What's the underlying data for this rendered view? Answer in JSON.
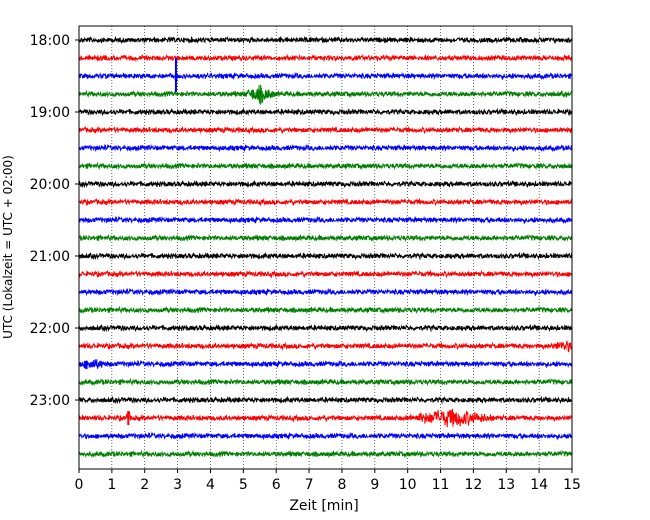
{
  "chart_data": {
    "type": "line",
    "chart_kind": "helicorder (seismogram drum plot)",
    "xlabel": "Zeit  [min]",
    "ylabel": "UTC (Lokalzeit = UTC + 02:00)",
    "xlim": [
      0,
      15
    ],
    "x_ticks": [
      "0",
      "1",
      "2",
      "3",
      "4",
      "5",
      "6",
      "7",
      "8",
      "9",
      "10",
      "11",
      "12",
      "13",
      "14",
      "15"
    ],
    "y_tick_labels": [
      "18:00",
      "19:00",
      "20:00",
      "21:00",
      "22:00",
      "23:00"
    ],
    "grid": "vertical dotted lines at every minute",
    "trace_colors": [
      "#000000",
      "#ff0000",
      "#0000ff",
      "#008000"
    ],
    "line_interval_minutes": 15,
    "traces": [
      {
        "start": "18:00",
        "color": "#000000"
      },
      {
        "start": "18:15",
        "color": "#ff0000"
      },
      {
        "start": "18:30",
        "color": "#0000ff"
      },
      {
        "start": "18:45",
        "color": "#008000"
      },
      {
        "start": "19:00",
        "color": "#000000"
      },
      {
        "start": "19:15",
        "color": "#ff0000"
      },
      {
        "start": "19:30",
        "color": "#0000ff"
      },
      {
        "start": "19:45",
        "color": "#008000"
      },
      {
        "start": "20:00",
        "color": "#000000"
      },
      {
        "start": "20:15",
        "color": "#ff0000"
      },
      {
        "start": "20:30",
        "color": "#0000ff"
      },
      {
        "start": "20:45",
        "color": "#008000"
      },
      {
        "start": "21:00",
        "color": "#000000"
      },
      {
        "start": "21:15",
        "color": "#ff0000"
      },
      {
        "start": "21:30",
        "color": "#0000ff"
      },
      {
        "start": "21:45",
        "color": "#008000"
      },
      {
        "start": "22:00",
        "color": "#000000"
      },
      {
        "start": "22:15",
        "color": "#ff0000"
      },
      {
        "start": "22:30",
        "color": "#0000ff"
      },
      {
        "start": "22:45",
        "color": "#008000"
      },
      {
        "start": "23:00",
        "color": "#000000"
      },
      {
        "start": "23:15",
        "color": "#ff0000"
      },
      {
        "start": "23:30",
        "color": "#0000ff"
      },
      {
        "start": "23:45",
        "color": "#008000"
      }
    ],
    "notable_signals": [
      {
        "trace": "18:30",
        "minute": 2.95,
        "description": "single large spike"
      },
      {
        "trace": "18:45",
        "minute": 5.5,
        "description": "elevated noise burst"
      },
      {
        "trace": "23:15",
        "minute": 11.3,
        "description": "strong burst (approx. minutes 9.8–12.8)"
      },
      {
        "trace": "23:15",
        "minute": 1.5,
        "description": "short spike"
      },
      {
        "trace": "22:30",
        "minute": 0.4,
        "description": "elevated noise"
      },
      {
        "trace": "22:15",
        "minute": 14.8,
        "description": "elevated noise"
      }
    ]
  }
}
